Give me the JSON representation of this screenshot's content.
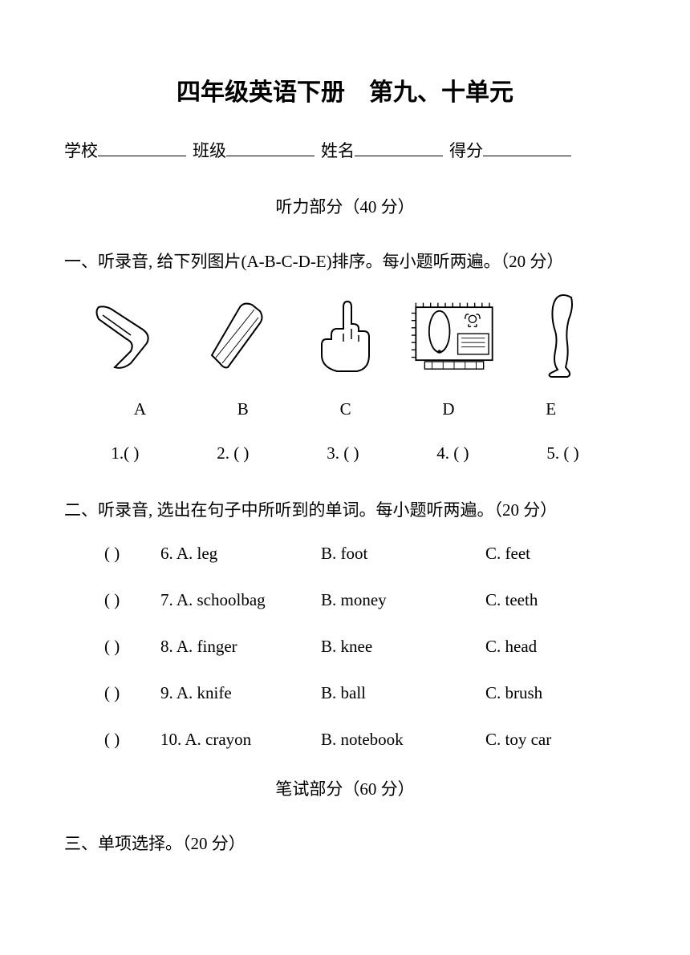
{
  "title": "四年级英语下册　第九、十单元",
  "info": {
    "school_label": "学校",
    "class_label": "班级",
    "name_label": "姓名",
    "score_label": "得分"
  },
  "listening_header": "听力部分（40 分）",
  "q1": {
    "instruction": "一、听录音, 给下列图片(A-B-C-D-E)排序。每小题听两遍。（20 分）",
    "labels": [
      "A",
      "B",
      "C",
      "D",
      "E"
    ],
    "answers": [
      "1.(       )",
      "2. (       )",
      "3.  (       )",
      "4. (       )",
      "5. (       )"
    ],
    "icons": [
      "elbow",
      "eraser",
      "finger",
      "pencilcase",
      "leg"
    ]
  },
  "q2": {
    "instruction": "二、听录音, 选出在句子中所听到的单词。每小题听两遍。（20 分）",
    "rows": [
      {
        "n": "6",
        "a": "A. leg",
        "b": "B. foot",
        "c": "C. feet"
      },
      {
        "n": "7",
        "a": "A. schoolbag",
        "b": "B. money",
        "c": "C. teeth"
      },
      {
        "n": "8",
        "a": "A. finger",
        "b": "B. knee",
        "c": "C. head"
      },
      {
        "n": "9",
        "a": "A. knife",
        "b": "B. ball",
        "c": "C. brush"
      },
      {
        "n": "10",
        "a": "A. crayon",
        "b": "B. notebook",
        "c": "C. toy car"
      }
    ]
  },
  "written_header": "笔试部分（60 分）",
  "q3": {
    "instruction": "三、单项选择。（20 分）"
  }
}
